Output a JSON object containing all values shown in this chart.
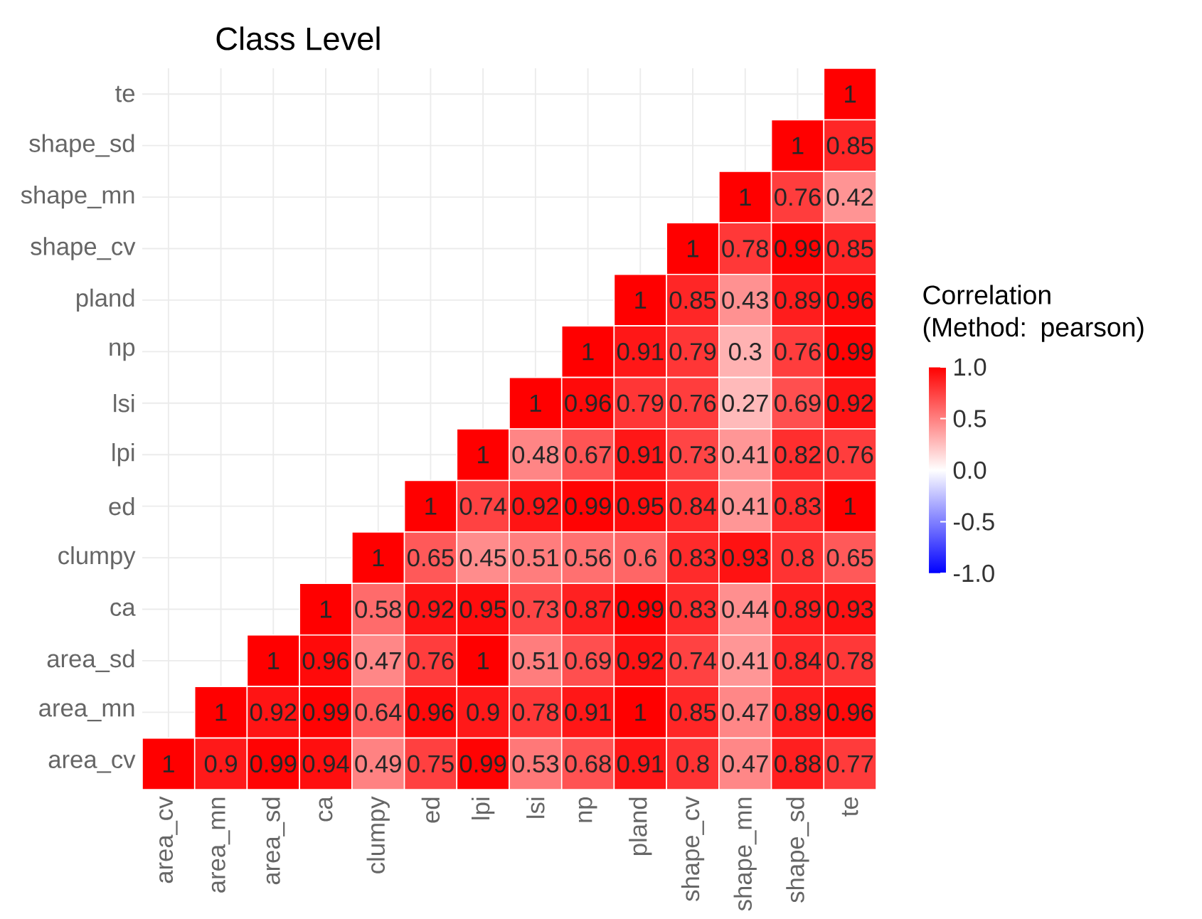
{
  "chart_data": {
    "type": "heatmap",
    "title": "Class Level",
    "clabel": "Correlation (Method: pearson)",
    "categories": [
      "area_cv",
      "area_mn",
      "area_sd",
      "ca",
      "clumpy",
      "ed",
      "lpi",
      "lsi",
      "np",
      "pland",
      "shape_cv",
      "shape_mn",
      "shape_sd",
      "te"
    ],
    "y_categories": [
      "te",
      "shape_sd",
      "shape_mn",
      "shape_cv",
      "pland",
      "np",
      "lsi",
      "lpi",
      "ed",
      "clumpy",
      "ca",
      "area_sd",
      "area_mn",
      "area_cv"
    ],
    "cells": [
      [
        null,
        null,
        null,
        null,
        null,
        null,
        null,
        null,
        null,
        null,
        null,
        null,
        null,
        1
      ],
      [
        null,
        null,
        null,
        null,
        null,
        null,
        null,
        null,
        null,
        null,
        null,
        null,
        1,
        0.85
      ],
      [
        null,
        null,
        null,
        null,
        null,
        null,
        null,
        null,
        null,
        null,
        null,
        1,
        0.76,
        0.42
      ],
      [
        null,
        null,
        null,
        null,
        null,
        null,
        null,
        null,
        null,
        null,
        1,
        0.78,
        0.99,
        0.85
      ],
      [
        null,
        null,
        null,
        null,
        null,
        null,
        null,
        null,
        null,
        1,
        0.85,
        0.43,
        0.89,
        0.96
      ],
      [
        null,
        null,
        null,
        null,
        null,
        null,
        null,
        null,
        1,
        0.91,
        0.79,
        0.3,
        0.76,
        0.99
      ],
      [
        null,
        null,
        null,
        null,
        null,
        null,
        null,
        1,
        0.96,
        0.79,
        0.76,
        0.27,
        0.69,
        0.92
      ],
      [
        null,
        null,
        null,
        null,
        null,
        null,
        1,
        0.48,
        0.67,
        0.91,
        0.73,
        0.41,
        0.82,
        0.76
      ],
      [
        null,
        null,
        null,
        null,
        null,
        1,
        0.74,
        0.92,
        0.99,
        0.95,
        0.84,
        0.41,
        0.83,
        1
      ],
      [
        null,
        null,
        null,
        null,
        1,
        0.65,
        0.45,
        0.51,
        0.56,
        0.6,
        0.83,
        0.93,
        0.8,
        0.65
      ],
      [
        null,
        null,
        null,
        1,
        0.58,
        0.92,
        0.95,
        0.73,
        0.87,
        0.99,
        0.83,
        0.44,
        0.89,
        0.93
      ],
      [
        null,
        null,
        1,
        0.96,
        0.47,
        0.76,
        1,
        0.51,
        0.69,
        0.92,
        0.74,
        0.41,
        0.84,
        0.78
      ],
      [
        null,
        1,
        0.92,
        0.99,
        0.64,
        0.96,
        0.9,
        0.78,
        0.91,
        1,
        0.85,
        0.47,
        0.89,
        0.96
      ],
      [
        1,
        0.9,
        0.99,
        0.94,
        0.49,
        0.75,
        0.99,
        0.53,
        0.68,
        0.91,
        0.8,
        0.47,
        0.88,
        0.77
      ]
    ],
    "clim": [
      -1,
      1
    ],
    "cticks": [
      {
        "value": -1,
        "label": "-1.0"
      },
      {
        "value": -0.5,
        "label": "-0.5"
      },
      {
        "value": 0,
        "label": "0.0"
      },
      {
        "value": 0.5,
        "label": "0.5"
      },
      {
        "value": 1,
        "label": "1.0"
      }
    ],
    "data_labels": true,
    "grid": true
  }
}
